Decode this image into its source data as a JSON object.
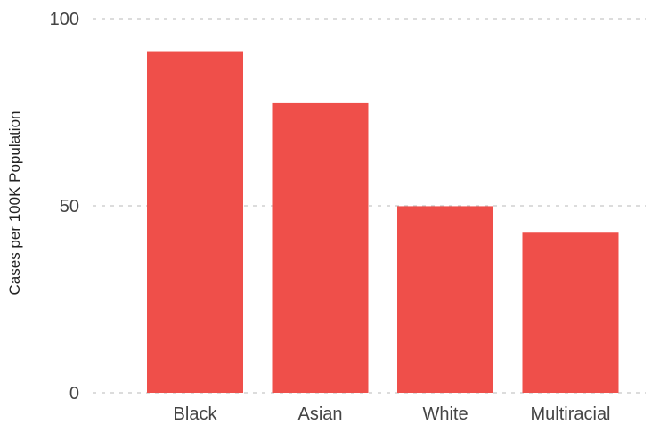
{
  "chart_data": {
    "type": "bar",
    "categories": [
      "Black",
      "Asian",
      "White",
      "Multiracial"
    ],
    "values": [
      91.3,
      77.4,
      49.9,
      42.8
    ],
    "xlabel": "",
    "ylabel": "Cases per 100K Population",
    "ylim": [
      0,
      100
    ],
    "yticks": [
      0,
      50,
      100
    ],
    "grid": true,
    "legend": "none",
    "colors": {
      "bar": "#ef4f4a",
      "grid": "#c8c8c8"
    }
  }
}
